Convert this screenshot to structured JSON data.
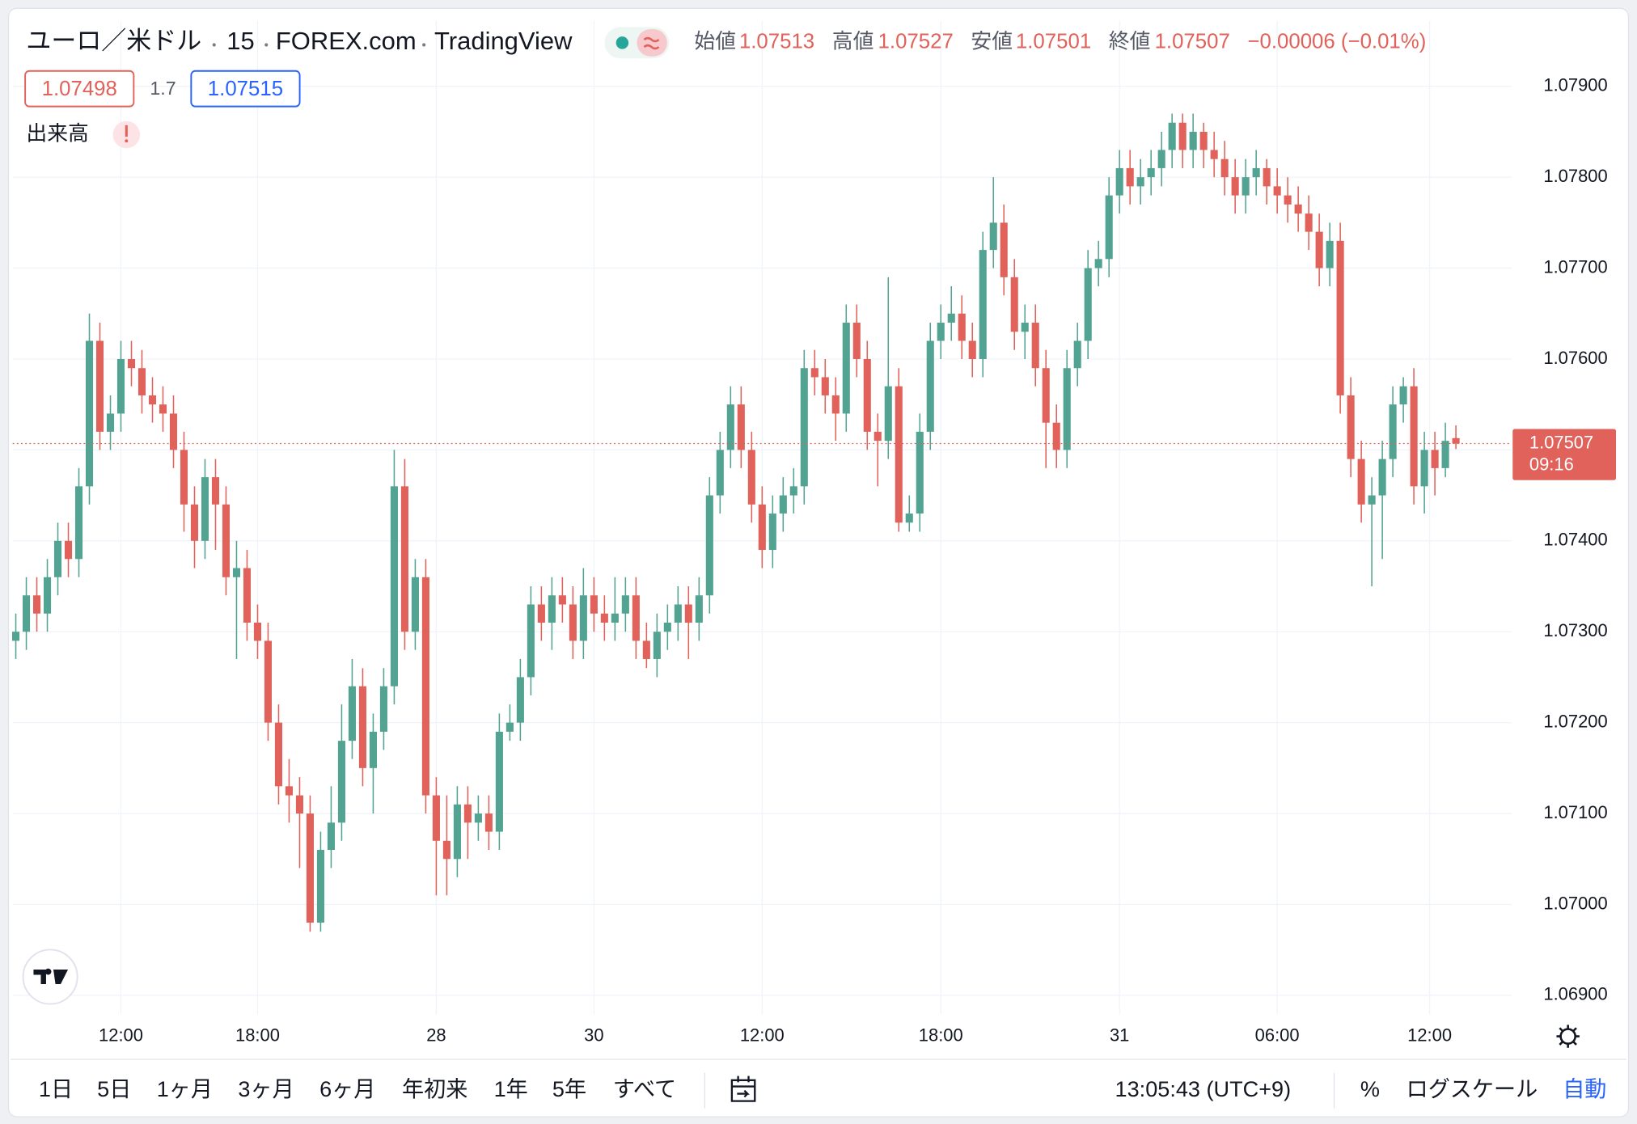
{
  "header": {
    "symbol": "ユーロ／米ドル",
    "interval": "15",
    "exchange": "FOREX.com",
    "source": "TradingView",
    "labels": {
      "open": "始値",
      "high": "高値",
      "low": "安値",
      "close": "終値"
    },
    "change": "−0.00006 (−0.01%)",
    "bid": "1.07498",
    "spread": "1.7",
    "ask": "1.07515",
    "volume": "出来高"
  },
  "chart_data": {
    "type": "candlestick",
    "open": [
      1.0729,
      1.073,
      1.0734,
      1.0732,
      1.0736,
      1.074,
      1.0738,
      1.0746,
      1.0762,
      1.0752,
      1.0754,
      1.076,
      1.0759,
      1.0756,
      1.0755,
      1.0754,
      1.075,
      1.0744,
      1.074,
      1.0747,
      1.0744,
      1.0736,
      1.0737,
      1.0731,
      1.0729,
      1.072,
      1.0713,
      1.0712,
      1.071,
      1.0698,
      1.0706,
      1.0709,
      1.0718,
      1.0724,
      1.0715,
      1.0719,
      1.0724,
      1.0746,
      1.073,
      1.0736,
      1.0712,
      1.0707,
      1.0705,
      1.0711,
      1.0709,
      1.071,
      1.0708,
      1.0719,
      1.072,
      1.0725,
      1.0733,
      1.0731,
      1.0734,
      1.0733,
      1.0729,
      1.0734,
      1.0732,
      1.0731,
      1.0732,
      1.0734,
      1.0729,
      1.0727,
      1.073,
      1.0731,
      1.0733,
      1.0731,
      1.0734,
      1.0745,
      1.075,
      1.0755,
      1.075,
      1.0744,
      1.0739,
      1.0743,
      1.0745,
      1.0746,
      1.0759,
      1.0758,
      1.0756,
      1.0754,
      1.0764,
      1.076,
      1.0752,
      1.0751,
      1.0757,
      1.0742,
      1.0743,
      1.0752,
      1.0762,
      1.0764,
      1.0765,
      1.0762,
      1.076,
      1.0772,
      1.0775,
      1.0769,
      1.0763,
      1.0764,
      1.0759,
      1.0753,
      1.075,
      1.0759,
      1.0762,
      1.077,
      1.0771,
      1.0778,
      1.0781,
      1.0779,
      1.078,
      1.0781,
      1.0783,
      1.0786,
      1.0783,
      1.0785,
      1.0783,
      1.0782,
      1.078,
      1.0778,
      1.078,
      1.0781,
      1.0779,
      1.0778,
      1.0777,
      1.0776,
      1.0774,
      1.077,
      1.0773,
      1.0756,
      1.0749,
      1.0744,
      1.0745,
      1.0749,
      1.0755,
      1.0757,
      1.0746,
      1.075,
      1.0748,
      1.07513
    ],
    "high": [
      1.0732,
      1.0736,
      1.0736,
      1.0738,
      1.0742,
      1.0742,
      1.0748,
      1.0765,
      1.0764,
      1.0756,
      1.0762,
      1.0762,
      1.0761,
      1.0758,
      1.0757,
      1.0756,
      1.0752,
      1.0746,
      1.0749,
      1.0749,
      1.0746,
      1.074,
      1.0739,
      1.0733,
      1.0731,
      1.0722,
      1.0716,
      1.0714,
      1.0712,
      1.0708,
      1.0713,
      1.0722,
      1.0727,
      1.0726,
      1.0721,
      1.0726,
      1.075,
      1.0749,
      1.0738,
      1.0738,
      1.0714,
      1.0712,
      1.0713,
      1.0713,
      1.0712,
      1.0712,
      1.0721,
      1.0722,
      1.0727,
      1.0735,
      1.0735,
      1.0736,
      1.0736,
      1.0735,
      1.0737,
      1.0736,
      1.0734,
      1.0736,
      1.0736,
      1.0736,
      1.0731,
      1.0732,
      1.0733,
      1.0735,
      1.0735,
      1.0736,
      1.0747,
      1.0752,
      1.0757,
      1.0757,
      1.0752,
      1.0746,
      1.0745,
      1.0747,
      1.0748,
      1.0761,
      1.0761,
      1.076,
      1.0758,
      1.0766,
      1.0766,
      1.0762,
      1.0754,
      1.0769,
      1.0759,
      1.0745,
      1.0754,
      1.0764,
      1.0766,
      1.0768,
      1.0767,
      1.0764,
      1.0774,
      1.078,
      1.0777,
      1.0771,
      1.0766,
      1.0766,
      1.0761,
      1.0755,
      1.0761,
      1.0764,
      1.0772,
      1.0773,
      1.078,
      1.0783,
      1.0783,
      1.0782,
      1.0783,
      1.0785,
      1.0787,
      1.0787,
      1.0787,
      1.0786,
      1.0785,
      1.0784,
      1.0782,
      1.0782,
      1.0783,
      1.0782,
      1.0781,
      1.078,
      1.0779,
      1.0778,
      1.0776,
      1.0775,
      1.0775,
      1.0758,
      1.0751,
      1.0747,
      1.0751,
      1.0757,
      1.0758,
      1.0759,
      1.0752,
      1.0752,
      1.0753,
      1.07527
    ],
    "low": [
      1.0727,
      1.0728,
      1.073,
      1.073,
      1.0734,
      1.0736,
      1.0736,
      1.0744,
      1.075,
      1.075,
      1.0752,
      1.0757,
      1.0754,
      1.0753,
      1.0752,
      1.0748,
      1.0741,
      1.0737,
      1.0738,
      1.0739,
      1.0734,
      1.0727,
      1.0729,
      1.0727,
      1.0718,
      1.0711,
      1.0709,
      1.0704,
      1.0697,
      1.0697,
      1.0704,
      1.0707,
      1.0716,
      1.0713,
      1.071,
      1.0717,
      1.0722,
      1.0728,
      1.0728,
      1.071,
      1.0701,
      1.0701,
      1.0703,
      1.0705,
      1.0707,
      1.0706,
      1.0706,
      1.0718,
      1.0718,
      1.0723,
      1.0729,
      1.0728,
      1.0731,
      1.0727,
      1.0727,
      1.073,
      1.0729,
      1.0729,
      1.073,
      1.0727,
      1.0726,
      1.0725,
      1.0728,
      1.0729,
      1.0727,
      1.0729,
      1.0732,
      1.0743,
      1.0748,
      1.0748,
      1.0742,
      1.0737,
      1.0737,
      1.0741,
      1.0743,
      1.0744,
      1.0756,
      1.0754,
      1.0751,
      1.0752,
      1.0758,
      1.075,
      1.0746,
      1.0749,
      1.0741,
      1.0741,
      1.0741,
      1.075,
      1.076,
      1.0762,
      1.076,
      1.0758,
      1.0758,
      1.077,
      1.0767,
      1.0761,
      1.076,
      1.0757,
      1.0748,
      1.0748,
      1.0748,
      1.0757,
      1.076,
      1.0768,
      1.0769,
      1.0776,
      1.0777,
      1.0777,
      1.0778,
      1.0779,
      1.0781,
      1.0781,
      1.0781,
      1.0781,
      1.078,
      1.0778,
      1.0776,
      1.0776,
      1.0778,
      1.0777,
      1.0776,
      1.0775,
      1.0774,
      1.0772,
      1.0768,
      1.0768,
      1.0754,
      1.0747,
      1.0742,
      1.0735,
      1.0738,
      1.0747,
      1.0753,
      1.0744,
      1.0743,
      1.0745,
      1.0747,
      1.07501
    ],
    "close": [
      1.073,
      1.0734,
      1.0732,
      1.0736,
      1.074,
      1.0738,
      1.0746,
      1.0762,
      1.0752,
      1.0754,
      1.076,
      1.0759,
      1.0756,
      1.0755,
      1.0754,
      1.075,
      1.0744,
      1.074,
      1.0747,
      1.0744,
      1.0736,
      1.0737,
      1.0731,
      1.0729,
      1.072,
      1.0713,
      1.0712,
      1.071,
      1.0698,
      1.0706,
      1.0709,
      1.0718,
      1.0724,
      1.0715,
      1.0719,
      1.0724,
      1.0746,
      1.073,
      1.0736,
      1.0712,
      1.0707,
      1.0705,
      1.0711,
      1.0709,
      1.071,
      1.0708,
      1.0719,
      1.072,
      1.0725,
      1.0733,
      1.0731,
      1.0734,
      1.0733,
      1.0729,
      1.0734,
      1.0732,
      1.0731,
      1.0732,
      1.0734,
      1.0729,
      1.0727,
      1.073,
      1.0731,
      1.0733,
      1.0731,
      1.0734,
      1.0745,
      1.075,
      1.0755,
      1.075,
      1.0744,
      1.0739,
      1.0743,
      1.0745,
      1.0746,
      1.0759,
      1.0758,
      1.0756,
      1.0754,
      1.0764,
      1.076,
      1.0752,
      1.0751,
      1.0757,
      1.0742,
      1.0743,
      1.0752,
      1.0762,
      1.0764,
      1.0765,
      1.0762,
      1.076,
      1.0772,
      1.0775,
      1.0769,
      1.0763,
      1.0764,
      1.0759,
      1.0753,
      1.075,
      1.0759,
      1.0762,
      1.077,
      1.0771,
      1.0778,
      1.0781,
      1.0779,
      1.078,
      1.0781,
      1.0783,
      1.0786,
      1.0783,
      1.0785,
      1.0783,
      1.0782,
      1.078,
      1.0778,
      1.078,
      1.0781,
      1.0779,
      1.0778,
      1.0777,
      1.0776,
      1.0774,
      1.077,
      1.0773,
      1.0756,
      1.0749,
      1.0744,
      1.0745,
      1.0749,
      1.0755,
      1.0757,
      1.0746,
      1.075,
      1.0748,
      1.0751,
      1.07507
    ],
    "up_color": "#53a392",
    "down_color": "#e0625a",
    "xlim": [
      -0.3,
      142.3
    ],
    "xticks": [
      {
        "value": 10,
        "label": "12:00"
      },
      {
        "value": 23,
        "label": "18:00"
      },
      {
        "value": 40,
        "label": "28"
      },
      {
        "value": 55,
        "label": "30"
      },
      {
        "value": 71,
        "label": "12:00"
      },
      {
        "value": 88,
        "label": "18:00"
      },
      {
        "value": 105,
        "label": "31"
      },
      {
        "value": 120,
        "label": "06:00"
      },
      {
        "value": 134.5,
        "label": "12:00"
      }
    ],
    "ylim": [
      1.06879,
      1.07972
    ],
    "yticks": [
      {
        "value": 1.069,
        "label": "1.06900"
      },
      {
        "value": 1.07,
        "label": "1.07000"
      },
      {
        "value": 1.071,
        "label": "1.07100"
      },
      {
        "value": 1.072,
        "label": "1.07200"
      },
      {
        "value": 1.073,
        "label": "1.07300"
      },
      {
        "value": 1.074,
        "label": "1.07400"
      },
      {
        "value": 1.075,
        "label": "1.07500"
      },
      {
        "value": 1.076,
        "label": "1.07600"
      },
      {
        "value": 1.077,
        "label": "1.07700"
      },
      {
        "value": 1.078,
        "label": "1.07800"
      },
      {
        "value": 1.079,
        "label": "1.07900"
      }
    ],
    "grid": true,
    "last_price_line": true,
    "countdown": "09:16"
  },
  "toolbar": {
    "ranges": [
      "1日",
      "5日",
      "1ヶ月",
      "3ヶ月",
      "6ヶ月",
      "年初来",
      "1年",
      "5年",
      "すべて"
    ],
    "clock": "13:05:43 (UTC+9)",
    "percent": "%",
    "log_scale": "ログスケール",
    "auto": "自動"
  }
}
